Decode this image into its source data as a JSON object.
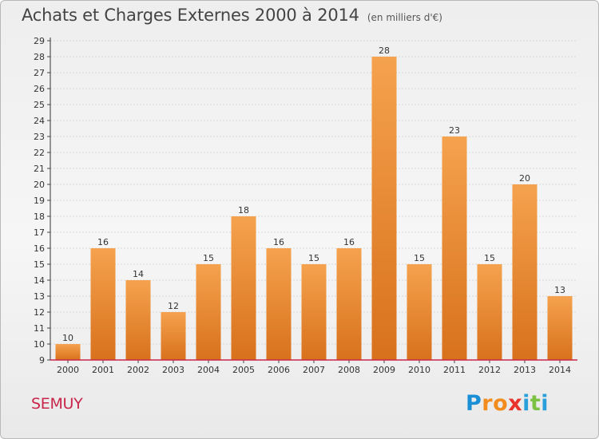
{
  "header": {
    "title": "Achats et Charges Externes 2000 à 2014",
    "subtitle": "(en milliers d'€)"
  },
  "footer": {
    "commune": "SEMUY",
    "logo": {
      "letters": [
        "P",
        "r",
        "o",
        "x",
        "i",
        "t",
        "i"
      ],
      "colors": [
        "#1a8fd6",
        "#f28c1e",
        "#f28c1e",
        "#e8322b",
        "#2b9fd9",
        "#7cc242",
        "#2b9fd9"
      ]
    }
  },
  "chart_data": {
    "type": "bar",
    "title": "Achats et Charges Externes 2000 à 2014",
    "subtitle": "(en milliers d'€)",
    "xlabel": "",
    "ylabel": "",
    "ylim": [
      9,
      29
    ],
    "yticks": [
      9,
      10,
      11,
      12,
      13,
      14,
      15,
      16,
      17,
      18,
      19,
      20,
      21,
      22,
      23,
      24,
      25,
      26,
      27,
      28,
      29
    ],
    "grid": true,
    "categories": [
      "2000",
      "2001",
      "2002",
      "2003",
      "2004",
      "2005",
      "2006",
      "2007",
      "2008",
      "2009",
      "2010",
      "2011",
      "2012",
      "2013",
      "2014"
    ],
    "values": [
      10,
      16,
      14,
      12,
      15,
      18,
      16,
      15,
      16,
      28,
      15,
      23,
      15,
      20,
      13
    ],
    "bar_color_top": "#f5a24e",
    "bar_color_bottom": "#d8711c",
    "axis_color": "#c8264a"
  }
}
